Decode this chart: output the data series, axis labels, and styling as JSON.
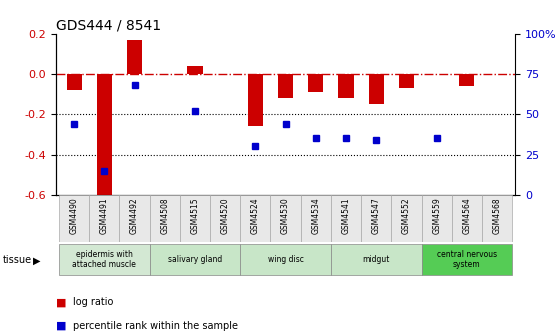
{
  "title": "GDS444 / 8541",
  "samples": [
    "GSM4490",
    "GSM4491",
    "GSM4492",
    "GSM4508",
    "GSM4515",
    "GSM4520",
    "GSM4524",
    "GSM4530",
    "GSM4534",
    "GSM4541",
    "GSM4547",
    "GSM4552",
    "GSM4559",
    "GSM4564",
    "GSM4568"
  ],
  "log_ratio": [
    -0.08,
    -0.62,
    0.17,
    0.0,
    0.04,
    0.0,
    -0.26,
    -0.12,
    -0.09,
    -0.12,
    -0.15,
    -0.07,
    0.0,
    -0.06,
    0.0
  ],
  "percentile": [
    44,
    15,
    68,
    null,
    52,
    null,
    30,
    44,
    35,
    35,
    34,
    null,
    35,
    null,
    null
  ],
  "ylim_left": [
    -0.6,
    0.2
  ],
  "ylim_right": [
    0,
    100
  ],
  "yticks_left": [
    -0.6,
    -0.4,
    -0.2,
    0.0,
    0.2
  ],
  "yticks_right": [
    0,
    25,
    50,
    75,
    100
  ],
  "ytick_labels_right": [
    "0",
    "25",
    "50",
    "75",
    "100%"
  ],
  "bar_color": "#cc0000",
  "dot_color": "#0000cc",
  "zero_line_color": "#cc0000",
  "bar_width": 0.5,
  "tissue_groups": [
    {
      "label": "epidermis with\nattached muscle",
      "start": 0,
      "end": 2,
      "color": "#d3e8d3"
    },
    {
      "label": "salivary gland",
      "start": 3,
      "end": 5,
      "color": "#c8e6c8"
    },
    {
      "label": "wing disc",
      "start": 6,
      "end": 8,
      "color": "#c8e6c8"
    },
    {
      "label": "midgut",
      "start": 9,
      "end": 11,
      "color": "#c8e6c8"
    },
    {
      "label": "central nervous\nsystem",
      "start": 12,
      "end": 14,
      "color": "#55cc55"
    }
  ],
  "legend_log_ratio_color": "#cc0000",
  "legend_percentile_color": "#0000cc"
}
